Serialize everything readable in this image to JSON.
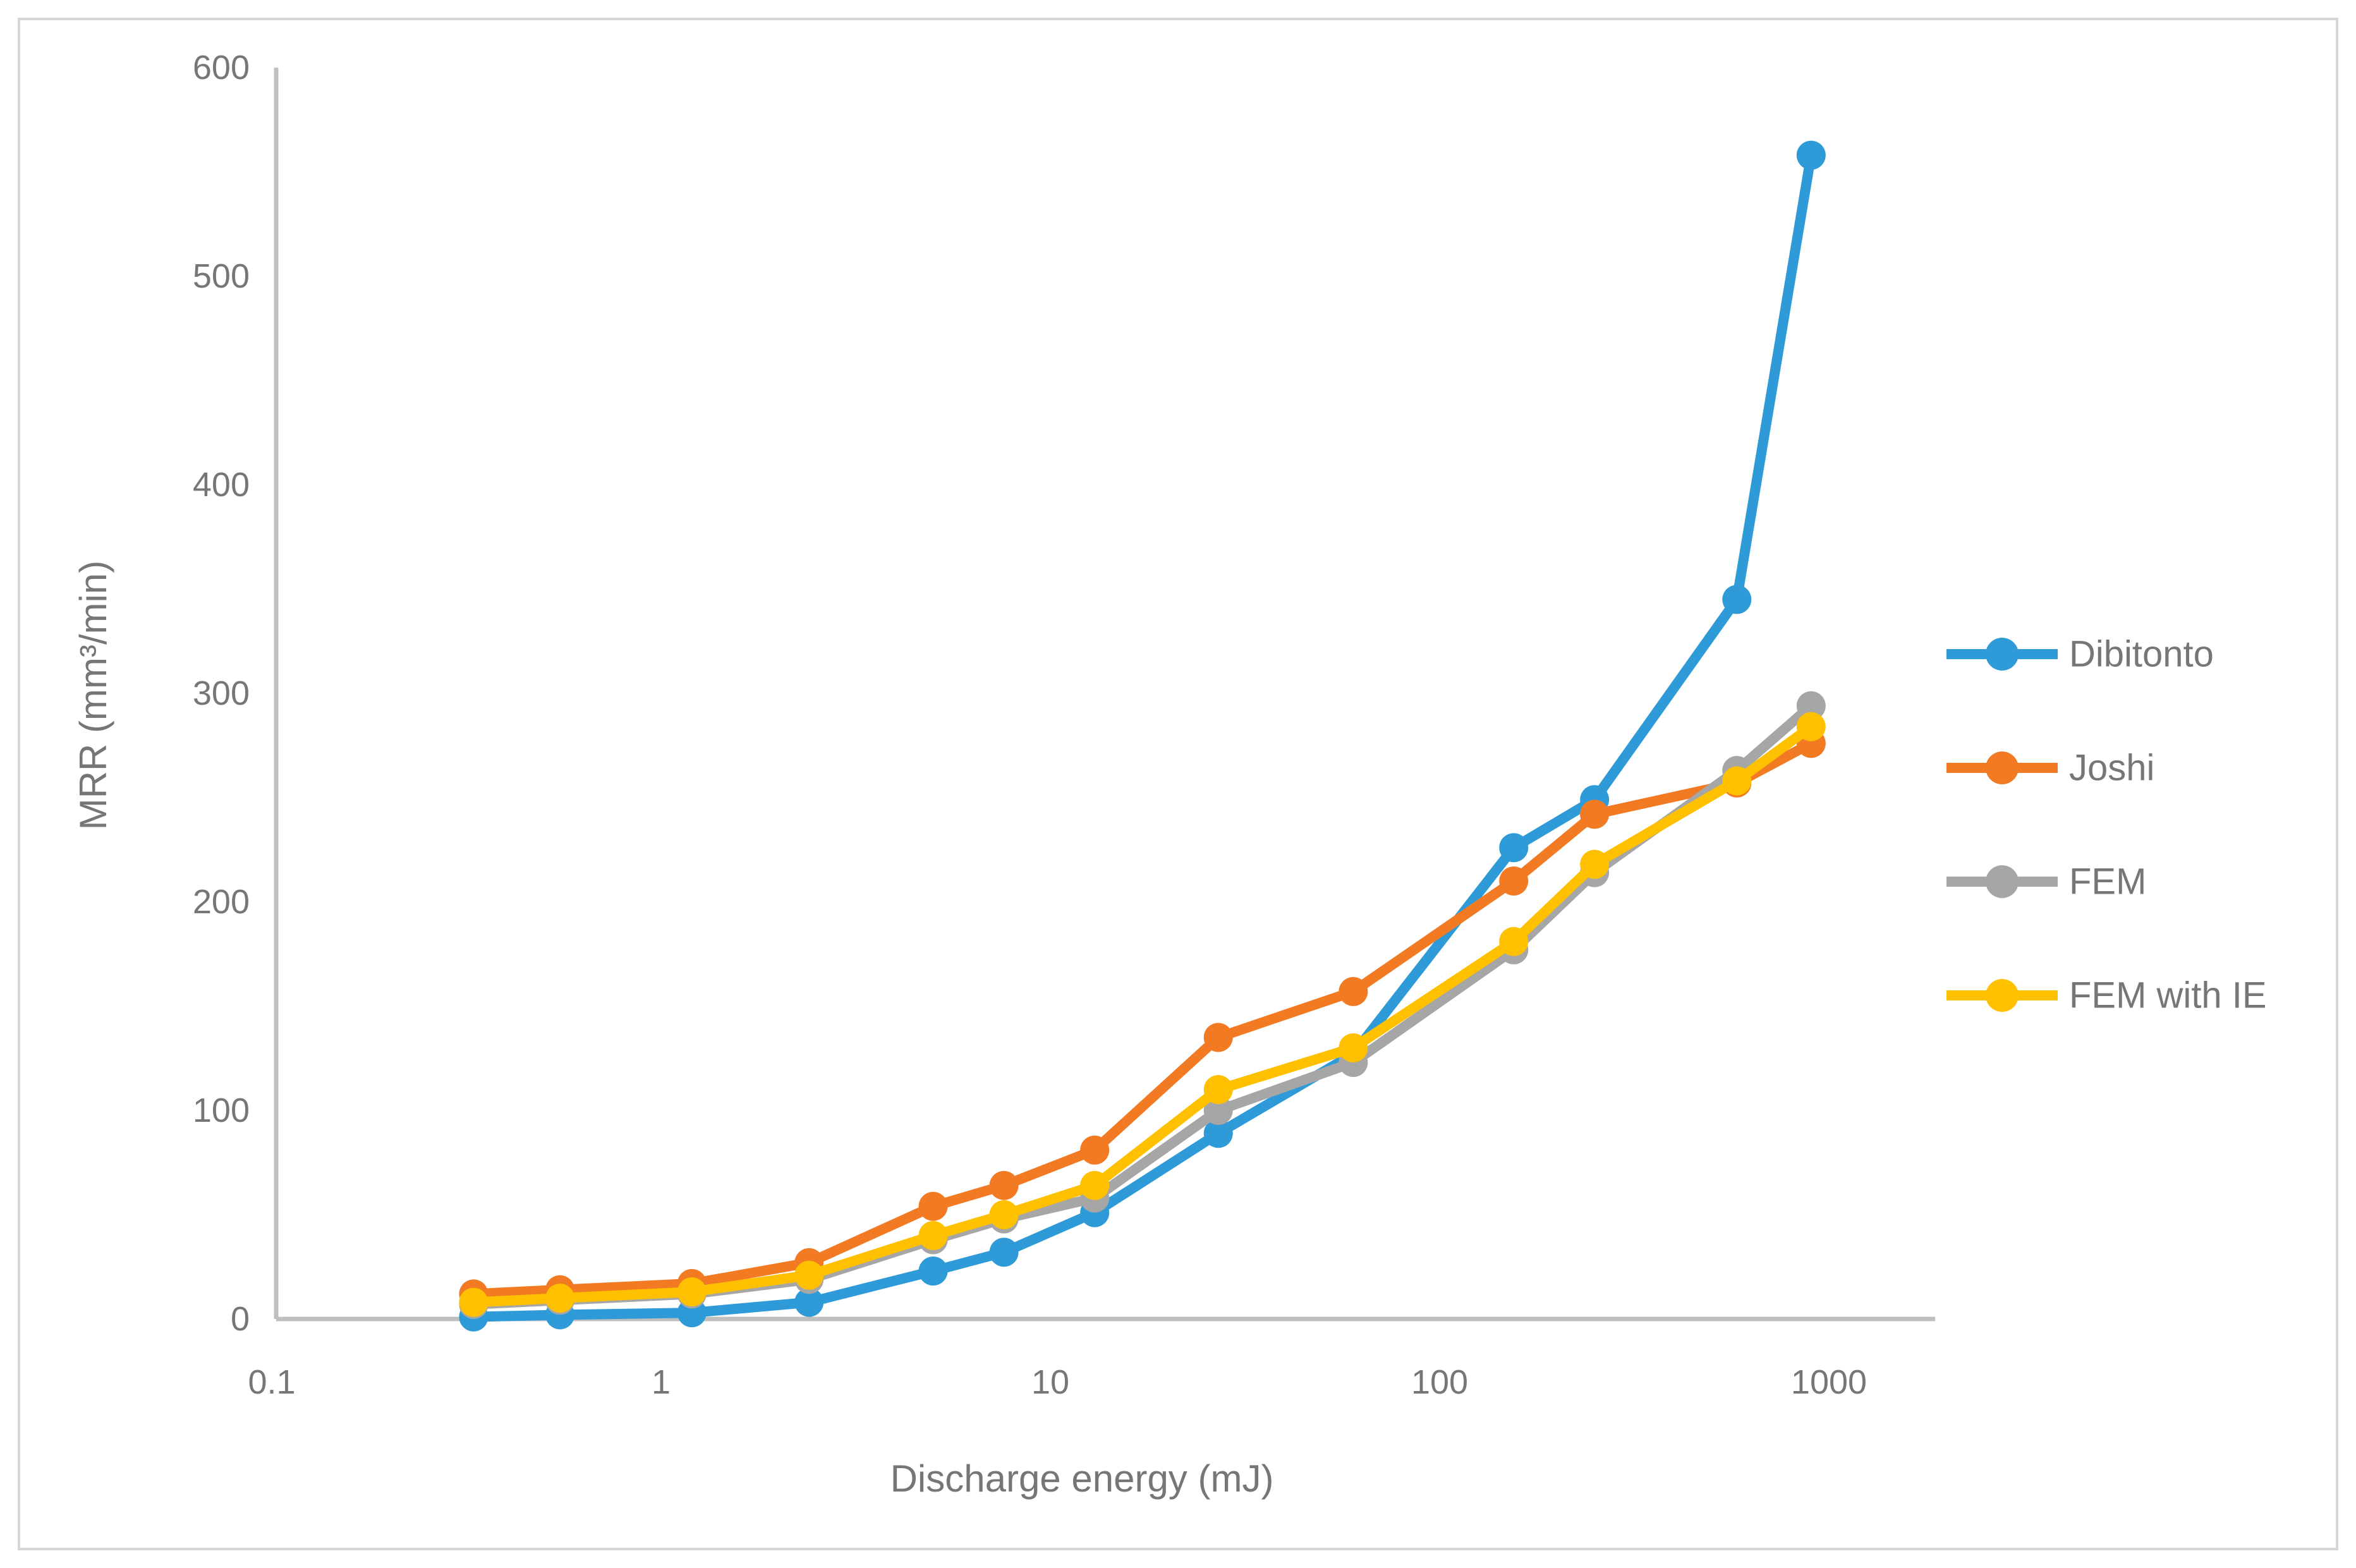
{
  "chart_data": {
    "type": "line",
    "title": "",
    "xlabel": "Discharge energy (mJ)",
    "ylabel": "MRR (mm³/min)",
    "x_scale": "log10",
    "xlim": [
      0.1,
      1800
    ],
    "ylim": [
      0,
      600
    ],
    "grid": false,
    "legend_position": "right",
    "x_ticks": [
      {
        "label": "0.1",
        "value": 0.1
      },
      {
        "label": "1",
        "value": 1
      },
      {
        "label": "10",
        "value": 10
      },
      {
        "label": "100",
        "value": 100
      },
      {
        "label": "1000",
        "value": 1000
      }
    ],
    "y_ticks": [
      {
        "label": "0",
        "value": 0
      },
      {
        "label": "100",
        "value": 100
      },
      {
        "label": "200",
        "value": 200
      },
      {
        "label": "300",
        "value": 300
      },
      {
        "label": "400",
        "value": 400
      },
      {
        "label": "500",
        "value": 500
      },
      {
        "label": "600",
        "value": 600
      }
    ],
    "x": [
      0.33,
      0.55,
      1.2,
      2.4,
      5,
      7.6,
      13,
      27,
      60,
      155,
      250,
      580,
      900
    ],
    "series": [
      {
        "name": "Dibitonto",
        "color": "#2E9BD8",
        "values": [
          1,
          2,
          3,
          8,
          23,
          32,
          51,
          89,
          127,
          226,
          249,
          345,
          558
        ]
      },
      {
        "name": "Joshi",
        "color": "#F27A23",
        "values": [
          12,
          14,
          17,
          27,
          54,
          64,
          81,
          135,
          157,
          210,
          242,
          257,
          276
        ]
      },
      {
        "name": "FEM",
        "color": "#A6A6A6",
        "values": [
          7,
          9,
          12,
          19,
          38,
          48,
          58,
          100,
          123,
          177,
          214,
          263,
          294
        ]
      },
      {
        "name": "FEM with IE",
        "color": "#FFC000",
        "values": [
          8,
          10,
          13,
          21,
          40,
          50,
          64,
          110,
          130,
          181,
          218,
          258,
          284
        ]
      }
    ]
  },
  "colors": {
    "background": "#FFFFFF",
    "border": "#D6D6D6",
    "axis_line": "#BFBFBF",
    "tick_text": "#767676"
  }
}
